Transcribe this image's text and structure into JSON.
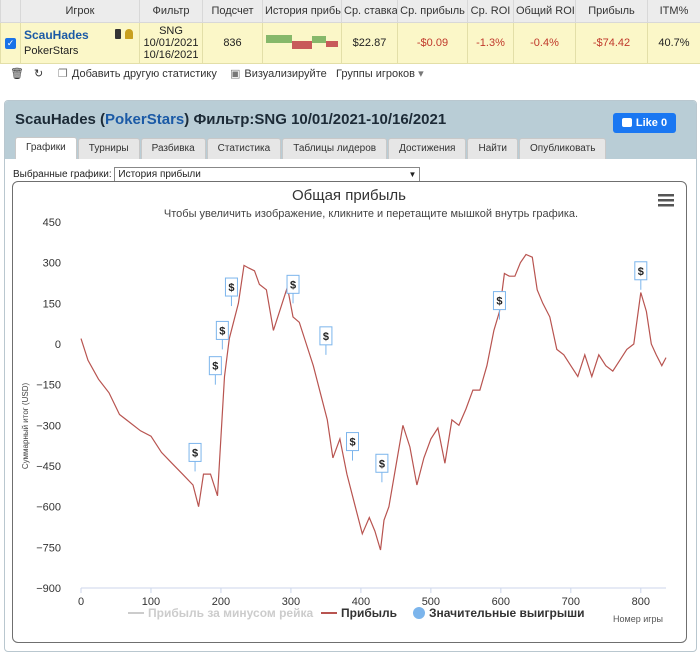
{
  "stats_table": {
    "headers": [
      "Игрок",
      "Фильтр",
      "Подсчет",
      "История прибыли",
      "Ср. ставка",
      "Ср. прибыль",
      "Ср. ROI",
      "Общий ROI",
      "Прибыль",
      "ITM%"
    ],
    "row": {
      "player": "ScauHades",
      "site": "PokerStars",
      "filter_line1": "SNG",
      "filter_line2": "10/01/2021",
      "filter_line3": "10/16/2021",
      "count": "836",
      "avg_stake": "$22.87",
      "avg_profit": "-$0.09",
      "avg_roi": "-1.3%",
      "total_roi": "-0.4%",
      "profit": "-$74.42",
      "itm": "40.7%"
    }
  },
  "toolbar": {
    "add_stats": "Добавить другую статистику",
    "visualize": "Визуализируйте",
    "player_groups": "Группы игроков"
  },
  "panel": {
    "player": "ScauHades",
    "site": "PokerStars",
    "filter": "Фильтр:SNG 10/01/2021-10/16/2021",
    "like_label": "Like",
    "like_count": "0",
    "tabs": [
      "Графики",
      "Турниры",
      "Разбивка",
      "Статистика",
      "Таблицы лидеров",
      "Достижения",
      "Найти",
      "Опубликовать"
    ],
    "select_label": "Выбранные графики:",
    "select_value": "История прибыли"
  },
  "colors": {
    "profit_line": "#b85450",
    "marker_border": "#7cb5ec",
    "legend_dim": "#cccccc",
    "marker_legend": "#7cb5ec"
  },
  "chart_data": {
    "type": "line",
    "title": "Общая прибыль",
    "subtitle": "Чтобы увеличить изображение, кликните и перетащите мышкой внутрь графика.",
    "ylabel": "Суммарный итог (USD)",
    "xlabel": "Номер игры",
    "xlim": [
      0,
      836
    ],
    "ylim": [
      -900,
      450
    ],
    "x_ticks": [
      0,
      100,
      200,
      300,
      400,
      500,
      600,
      700,
      800
    ],
    "y_ticks": [
      450,
      300,
      150,
      0,
      -150,
      -300,
      -450,
      -600,
      -750,
      -900
    ],
    "grid": false,
    "legend_position": "bottom",
    "series": [
      {
        "name": "Прибыль",
        "x": [
          0,
          10,
          25,
          40,
          55,
          70,
          85,
          100,
          115,
          130,
          145,
          160,
          168,
          175,
          185,
          195,
          205,
          212,
          218,
          225,
          233,
          240,
          248,
          255,
          265,
          275,
          285,
          295,
          303,
          312,
          322,
          332,
          342,
          352,
          360,
          370,
          380,
          392,
          402,
          412,
          420,
          428,
          433,
          440,
          450,
          460,
          470,
          480,
          490,
          500,
          510,
          520,
          530,
          540,
          550,
          560,
          570,
          580,
          590,
          598,
          605,
          612,
          620,
          628,
          636,
          645,
          652,
          660,
          670,
          680,
          690,
          700,
          710,
          720,
          730,
          740,
          750,
          760,
          770,
          780,
          790,
          800,
          808,
          815,
          822,
          830,
          836
        ],
        "y": [
          20,
          -60,
          -130,
          -180,
          -260,
          -290,
          -320,
          -340,
          -400,
          -440,
          -480,
          -520,
          -600,
          -480,
          -480,
          -560,
          -120,
          20,
          80,
          150,
          290,
          280,
          270,
          220,
          200,
          50,
          130,
          210,
          100,
          80,
          0,
          -80,
          -180,
          -280,
          -420,
          -350,
          -480,
          -600,
          -700,
          -640,
          -690,
          -760,
          -650,
          -600,
          -450,
          -300,
          -380,
          -520,
          -420,
          -350,
          -310,
          -440,
          -280,
          -300,
          -240,
          -170,
          -170,
          -80,
          50,
          120,
          260,
          250,
          250,
          300,
          330,
          320,
          200,
          150,
          100,
          -20,
          -40,
          -80,
          -120,
          -40,
          -120,
          -40,
          -80,
          -100,
          -60,
          -20,
          0,
          190,
          120,
          0,
          -40,
          -80,
          -50
        ]
      }
    ],
    "legend": [
      "Прибыль за минусом рейка",
      "Прибыль",
      "Значительные выигрыши"
    ],
    "big_wins": [
      {
        "x": 163,
        "y": -470,
        "label": "$"
      },
      {
        "x": 192,
        "y": -150,
        "label": "$"
      },
      {
        "x": 202,
        "y": -20,
        "label": "$"
      },
      {
        "x": 215,
        "y": 140,
        "label": "$"
      },
      {
        "x": 303,
        "y": 150,
        "label": "$"
      },
      {
        "x": 350,
        "y": -40,
        "label": "$"
      },
      {
        "x": 388,
        "y": -430,
        "label": "$"
      },
      {
        "x": 430,
        "y": -510,
        "label": "$"
      },
      {
        "x": 598,
        "y": 90,
        "label": "$"
      },
      {
        "x": 800,
        "y": 200,
        "label": "$"
      }
    ]
  }
}
